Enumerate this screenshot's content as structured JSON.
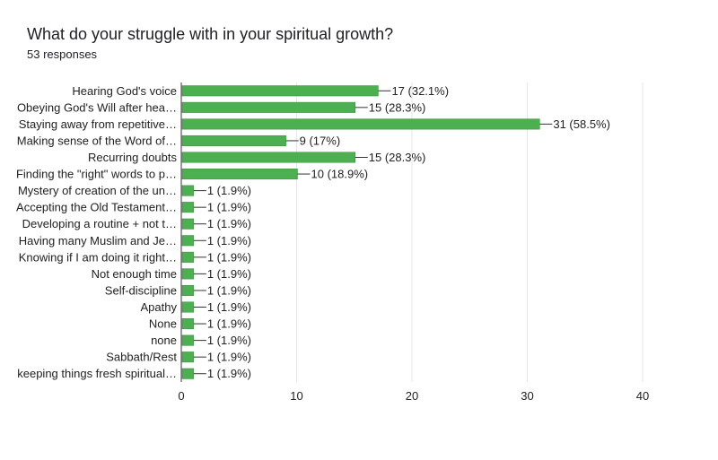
{
  "header": {
    "title": "What do your struggle with in your spiritual growth?",
    "responses": "53 responses"
  },
  "colors": {
    "bar": "#4caf50",
    "bar_edge": "#3d8b40",
    "grid": "#e6e6e6",
    "axis": "#333333",
    "text": "#212121"
  },
  "chart_data": {
    "type": "bar",
    "orientation": "horizontal",
    "title": "What do your struggle with in your spiritual growth?",
    "subtitle": "53 responses",
    "xlabel": "",
    "ylabel": "",
    "xlim": [
      0,
      40
    ],
    "xticks": [
      0,
      10,
      20,
      30,
      40
    ],
    "grid": true,
    "categories": [
      "Hearing God's voice",
      "Obeying God's Will after hea…",
      "Staying away from repetitive…",
      "Making sense of the Word of…",
      "Recurring doubts",
      "Finding the \"right\" words to p…",
      "Mystery of creation of the un…",
      "Accepting the Old Testament…",
      "Developing a routine + not t…",
      "Having many Muslim and Je…",
      "Knowing if I am doing it right…",
      "Not enough time",
      "Self-discipline",
      "Apathy",
      "None",
      "none",
      "Sabbath/Rest",
      "keeping things fresh spiritual…"
    ],
    "values": [
      17,
      15,
      31,
      9,
      15,
      10,
      1,
      1,
      1,
      1,
      1,
      1,
      1,
      1,
      1,
      1,
      1,
      1
    ],
    "data_labels": [
      "17 (32.1%)",
      "15 (28.3%)",
      "31 (58.5%)",
      "9 (17%)",
      "15 (28.3%)",
      "10 (18.9%)",
      "1 (1.9%)",
      "1 (1.9%)",
      "1 (1.9%)",
      "1 (1.9%)",
      "1 (1.9%)",
      "1 (1.9%)",
      "1 (1.9%)",
      "1 (1.9%)",
      "1 (1.9%)",
      "1 (1.9%)",
      "1 (1.9%)",
      "1 (1.9%)"
    ]
  }
}
